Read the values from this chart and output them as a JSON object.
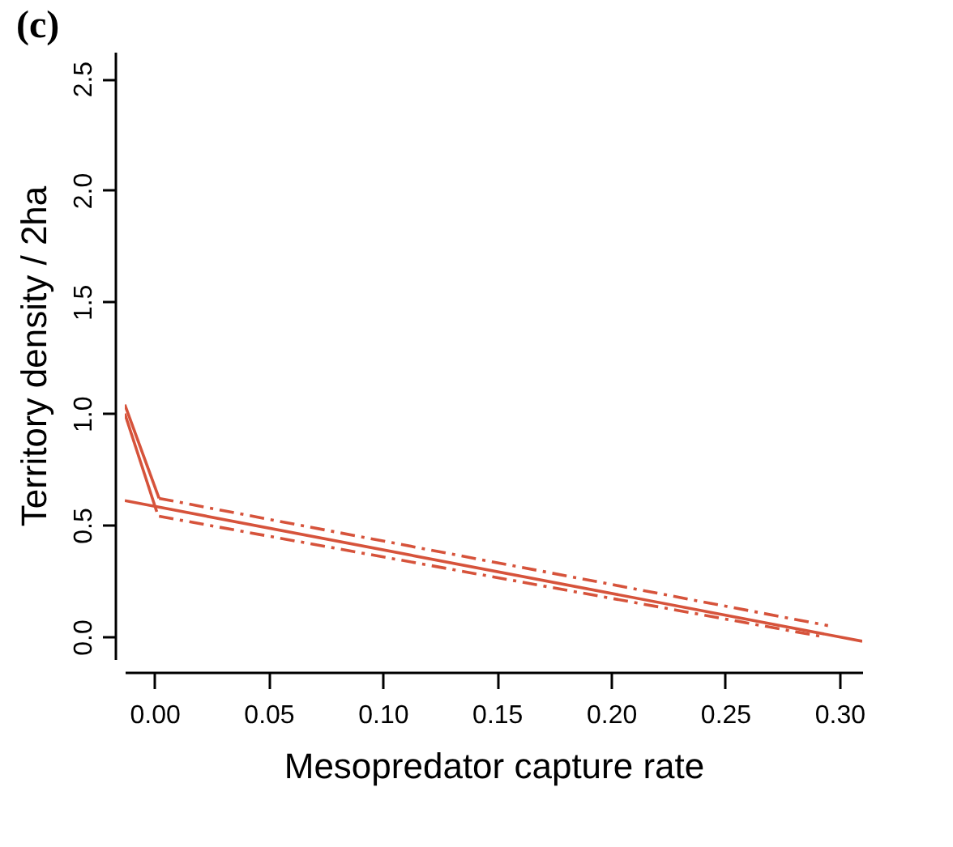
{
  "chart_data": {
    "type": "line",
    "title": "(c)",
    "xlabel": "Mesopredator capture rate",
    "ylabel": "Territory density / 2ha",
    "xlim": [
      -0.013,
      0.31
    ],
    "ylim": [
      -0.1,
      2.62
    ],
    "xticks": [
      {
        "value": 0,
        "label": "0.00"
      },
      {
        "value": 0.05,
        "label": "0.05"
      },
      {
        "value": 0.1,
        "label": "0.10"
      },
      {
        "value": 0.15,
        "label": "0.15"
      },
      {
        "value": 0.2,
        "label": "0.20"
      },
      {
        "value": 0.25,
        "label": "0.25"
      },
      {
        "value": 0.3,
        "label": "0.30"
      }
    ],
    "yticks": [
      {
        "value": 0,
        "label": "0.0"
      },
      {
        "value": 0.5,
        "label": "0.5"
      },
      {
        "value": 1,
        "label": "1.0"
      },
      {
        "value": 1.5,
        "label": "1.5"
      },
      {
        "value": 2,
        "label": "2.0"
      },
      {
        "value": 2.5,
        "label": "2.5"
      }
    ],
    "grid": false,
    "series": [
      {
        "color": "#d6533b",
        "line_style": "solid",
        "x": [
          -0.013,
          0.31
        ],
        "values": [
          0.61,
          -0.02
        ]
      },
      {
        "color": "#d6533b",
        "line_style": "solid",
        "x": [
          -0.013,
          0.002
        ],
        "values": [
          1.04,
          0.62
        ]
      },
      {
        "color": "#d6533b",
        "line_style": "solid",
        "x": [
          -0.013,
          0.001
        ],
        "values": [
          1.0,
          0.56
        ]
      },
      {
        "color": "#d6533b",
        "line_style": "dashed",
        "x": [
          0.002,
          0.295
        ],
        "values": [
          0.62,
          0.05
        ]
      },
      {
        "color": "#d6533b",
        "line_style": "dashed",
        "x": [
          0.002,
          0.293
        ],
        "values": [
          0.54,
          0.0
        ]
      }
    ]
  }
}
